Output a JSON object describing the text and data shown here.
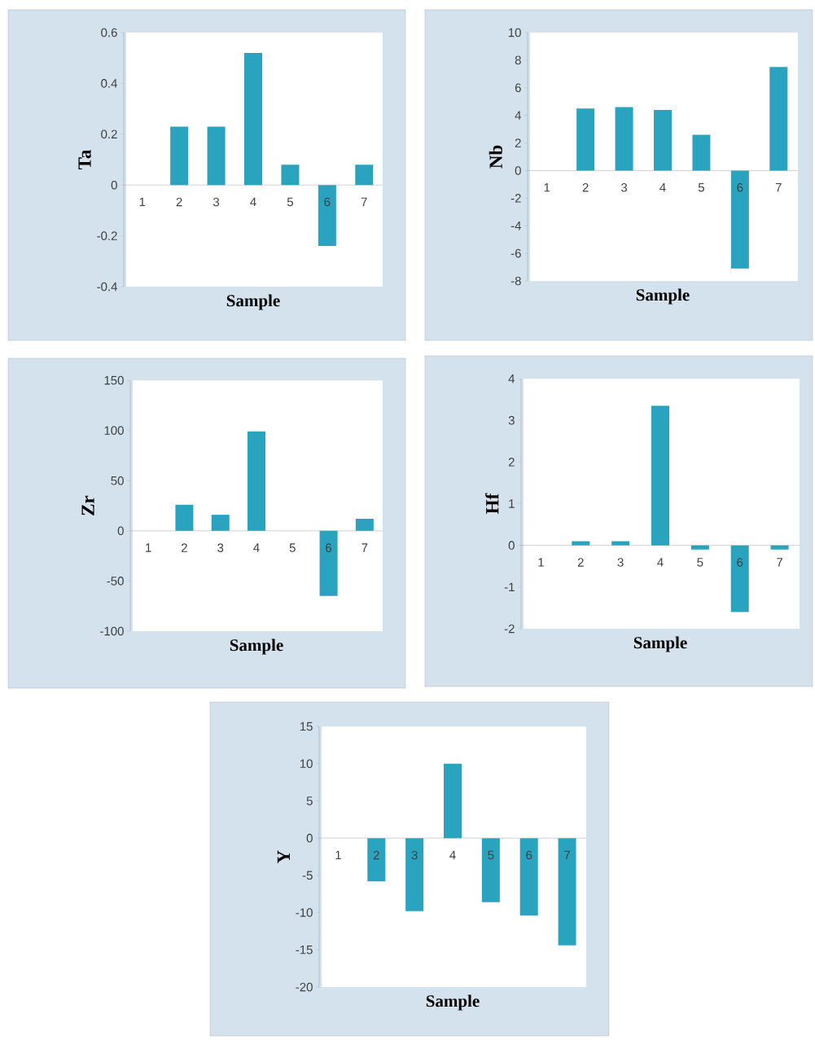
{
  "chart_data": [
    {
      "type": "bar",
      "xlabel": "Sample",
      "ylabel": "Ta",
      "categories": [
        "1",
        "2",
        "3",
        "4",
        "5",
        "6",
        "7"
      ],
      "values": [
        0,
        0.23,
        0.23,
        0.52,
        0.08,
        -0.24,
        0.08
      ],
      "color": "#2aa3bf",
      "ylim": [
        -0.4,
        0.6
      ],
      "yticks": [
        -0.4,
        -0.2,
        0,
        0.2,
        0.4,
        0.6
      ]
    },
    {
      "type": "bar",
      "xlabel": "Sample",
      "ylabel": "Nb",
      "categories": [
        "1",
        "2",
        "3",
        "4",
        "5",
        "6",
        "7"
      ],
      "values": [
        0,
        4.5,
        4.6,
        4.4,
        2.6,
        -7.1,
        7.5
      ],
      "color": "#2aa3bf",
      "ylim": [
        -8,
        10
      ],
      "yticks": [
        -8,
        -6,
        -4,
        -2,
        0,
        2,
        4,
        6,
        8,
        10
      ]
    },
    {
      "type": "bar",
      "xlabel": "Sample",
      "ylabel": "Zr",
      "categories": [
        "1",
        "2",
        "3",
        "4",
        "5",
        "6",
        "7"
      ],
      "values": [
        0,
        26,
        16,
        99,
        0,
        -65,
        12
      ],
      "color": "#2aa3bf",
      "ylim": [
        -100,
        150
      ],
      "yticks": [
        -100,
        -50,
        0,
        50,
        100,
        150
      ]
    },
    {
      "type": "bar",
      "xlabel": "Sample",
      "ylabel": "Hf",
      "categories": [
        "1",
        "2",
        "3",
        "4",
        "5",
        "6",
        "7"
      ],
      "values": [
        0,
        0.1,
        0.1,
        3.35,
        -0.1,
        -1.6,
        -0.1
      ],
      "color": "#2aa3bf",
      "ylim": [
        -2,
        4
      ],
      "yticks": [
        -2,
        -1,
        0,
        1,
        2,
        3,
        4
      ]
    },
    {
      "type": "bar",
      "xlabel": "Sample",
      "ylabel": "Y",
      "categories": [
        "1",
        "2",
        "3",
        "4",
        "5",
        "6",
        "7"
      ],
      "values": [
        0,
        -5.8,
        -9.8,
        10,
        -8.6,
        -10.4,
        -14.4
      ],
      "color": "#2aa3bf",
      "ylim": [
        -20,
        15
      ],
      "yticks": [
        -20,
        -15,
        -10,
        -5,
        0,
        5,
        10,
        15
      ]
    }
  ]
}
